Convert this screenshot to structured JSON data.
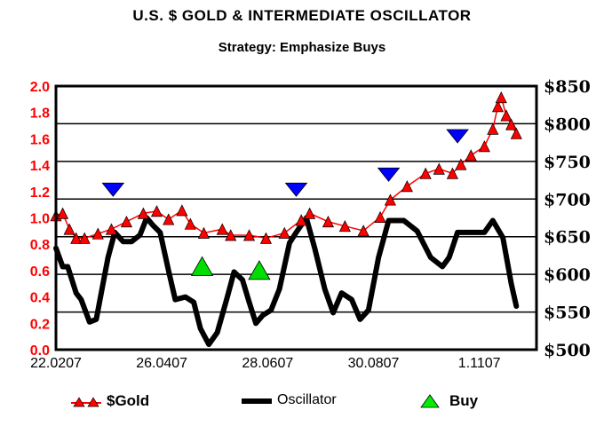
{
  "chart_data": {
    "type": "line",
    "title": "U.S. $ GOLD & INTERMEDIATE OSCILLATOR",
    "subtitle": "Strategy: Emphasize Buys",
    "xlim": [
      "2007-02-22",
      "2007-12-05"
    ],
    "x_ticks": [
      "22.0207",
      "26.0407",
      "28.0607",
      "30.0807",
      "1.1107"
    ],
    "x_tick_dates": [
      "2007-02-22",
      "2007-04-26",
      "2007-06-28",
      "2007-08-30",
      "2007-11-01"
    ],
    "left_axis": {
      "ylim": [
        0,
        2.0
      ],
      "ticks": [
        "2.0",
        "1.8",
        "1.6",
        "1.4",
        "1.2",
        "1.0",
        "0.8",
        "0.6",
        "0.4",
        "0.2",
        "0.0"
      ],
      "color": "#ff0000"
    },
    "right_axis": {
      "ylim": [
        500,
        850
      ],
      "ticks": [
        "$850",
        "$800",
        "$750",
        "$700",
        "$650",
        "$600",
        "$550",
        "$500"
      ],
      "color": "#000000"
    },
    "grid": true,
    "legend_placement": "bottom",
    "series": [
      {
        "name": "$Gold",
        "axis": "right",
        "color": "#ff0000",
        "marker": "triangle-up",
        "points": [
          [
            "2007-02-22",
            678
          ],
          [
            "2007-02-26",
            681
          ],
          [
            "2007-03-02",
            660
          ],
          [
            "2007-03-06",
            648
          ],
          [
            "2007-03-11",
            648
          ],
          [
            "2007-03-19",
            654
          ],
          [
            "2007-03-27",
            660
          ],
          [
            "2007-04-05",
            670
          ],
          [
            "2007-04-15",
            681
          ],
          [
            "2007-04-23",
            684
          ],
          [
            "2007-04-30",
            673
          ],
          [
            "2007-05-08",
            685
          ],
          [
            "2007-05-13",
            667
          ],
          [
            "2007-05-21",
            655
          ],
          [
            "2007-06-01",
            660
          ],
          [
            "2007-06-06",
            652
          ],
          [
            "2007-06-17",
            652
          ],
          [
            "2007-06-27",
            648
          ],
          [
            "2007-07-08",
            655
          ],
          [
            "2007-07-18",
            672
          ],
          [
            "2007-07-23",
            681
          ],
          [
            "2007-08-03",
            670
          ],
          [
            "2007-08-13",
            664
          ],
          [
            "2007-08-24",
            658
          ],
          [
            "2007-09-03",
            676
          ],
          [
            "2007-09-09",
            699
          ],
          [
            "2007-09-19",
            717
          ],
          [
            "2007-09-30",
            734
          ],
          [
            "2007-10-08",
            740
          ],
          [
            "2007-10-16",
            734
          ],
          [
            "2007-10-21",
            746
          ],
          [
            "2007-10-27",
            758
          ],
          [
            "2007-11-04",
            770
          ],
          [
            "2007-11-09",
            793
          ],
          [
            "2007-11-12",
            823
          ],
          [
            "2007-11-14",
            835
          ],
          [
            "2007-11-17",
            811
          ],
          [
            "2007-11-20",
            799
          ],
          [
            "2007-11-23",
            787
          ]
        ]
      },
      {
        "name": "Oscillator",
        "axis": "left",
        "color": "#000000",
        "points": [
          [
            "2007-02-22",
            0.77
          ],
          [
            "2007-02-26",
            0.63
          ],
          [
            "2007-03-01",
            0.63
          ],
          [
            "2007-03-06",
            0.43
          ],
          [
            "2007-03-09",
            0.38
          ],
          [
            "2007-03-14",
            0.21
          ],
          [
            "2007-03-18",
            0.23
          ],
          [
            "2007-03-22",
            0.5
          ],
          [
            "2007-03-25",
            0.7
          ],
          [
            "2007-03-29",
            0.89
          ],
          [
            "2007-04-03",
            0.82
          ],
          [
            "2007-04-08",
            0.82
          ],
          [
            "2007-04-13",
            0.87
          ],
          [
            "2007-04-17",
            1.0
          ],
          [
            "2007-04-21",
            0.94
          ],
          [
            "2007-04-25",
            0.89
          ],
          [
            "2007-04-30",
            0.6
          ],
          [
            "2007-05-04",
            0.38
          ],
          [
            "2007-05-10",
            0.4
          ],
          [
            "2007-05-15",
            0.36
          ],
          [
            "2007-05-19",
            0.16
          ],
          [
            "2007-05-24",
            0.04
          ],
          [
            "2007-05-29",
            0.13
          ],
          [
            "2007-06-04",
            0.4
          ],
          [
            "2007-06-08",
            0.59
          ],
          [
            "2007-06-13",
            0.53
          ],
          [
            "2007-06-17",
            0.36
          ],
          [
            "2007-06-21",
            0.2
          ],
          [
            "2007-06-25",
            0.26
          ],
          [
            "2007-06-30",
            0.3
          ],
          [
            "2007-07-05",
            0.46
          ],
          [
            "2007-07-11",
            0.81
          ],
          [
            "2007-07-15",
            0.89
          ],
          [
            "2007-07-21",
            1.0
          ],
          [
            "2007-07-26",
            0.77
          ],
          [
            "2007-08-01",
            0.46
          ],
          [
            "2007-08-06",
            0.28
          ],
          [
            "2007-08-11",
            0.43
          ],
          [
            "2007-08-17",
            0.38
          ],
          [
            "2007-08-22",
            0.23
          ],
          [
            "2007-08-27",
            0.3
          ],
          [
            "2007-09-02",
            0.7
          ],
          [
            "2007-09-08",
            0.98
          ],
          [
            "2007-09-17",
            0.98
          ],
          [
            "2007-09-25",
            0.9
          ],
          [
            "2007-10-03",
            0.7
          ],
          [
            "2007-10-10",
            0.63
          ],
          [
            "2007-10-14",
            0.7
          ],
          [
            "2007-10-19",
            0.89
          ],
          [
            "2007-10-27",
            0.89
          ],
          [
            "2007-11-04",
            0.89
          ],
          [
            "2007-11-09",
            0.98
          ],
          [
            "2007-11-15",
            0.85
          ],
          [
            "2007-11-20",
            0.5
          ],
          [
            "2007-11-23",
            0.33
          ]
        ]
      },
      {
        "name": "Buy",
        "axis": "left",
        "color": "#00dd00",
        "marker": "triangle-up",
        "points": [
          [
            "2007-05-20",
            0.63
          ],
          [
            "2007-06-23",
            0.6
          ]
        ]
      },
      {
        "axis": "right",
        "color": "#0000ff",
        "marker": "triangle-down",
        "points": [
          [
            "2007-03-28",
            713
          ],
          [
            "2007-07-15",
            713
          ],
          [
            "2007-09-08",
            733
          ],
          [
            "2007-10-19",
            784
          ]
        ]
      }
    ]
  }
}
